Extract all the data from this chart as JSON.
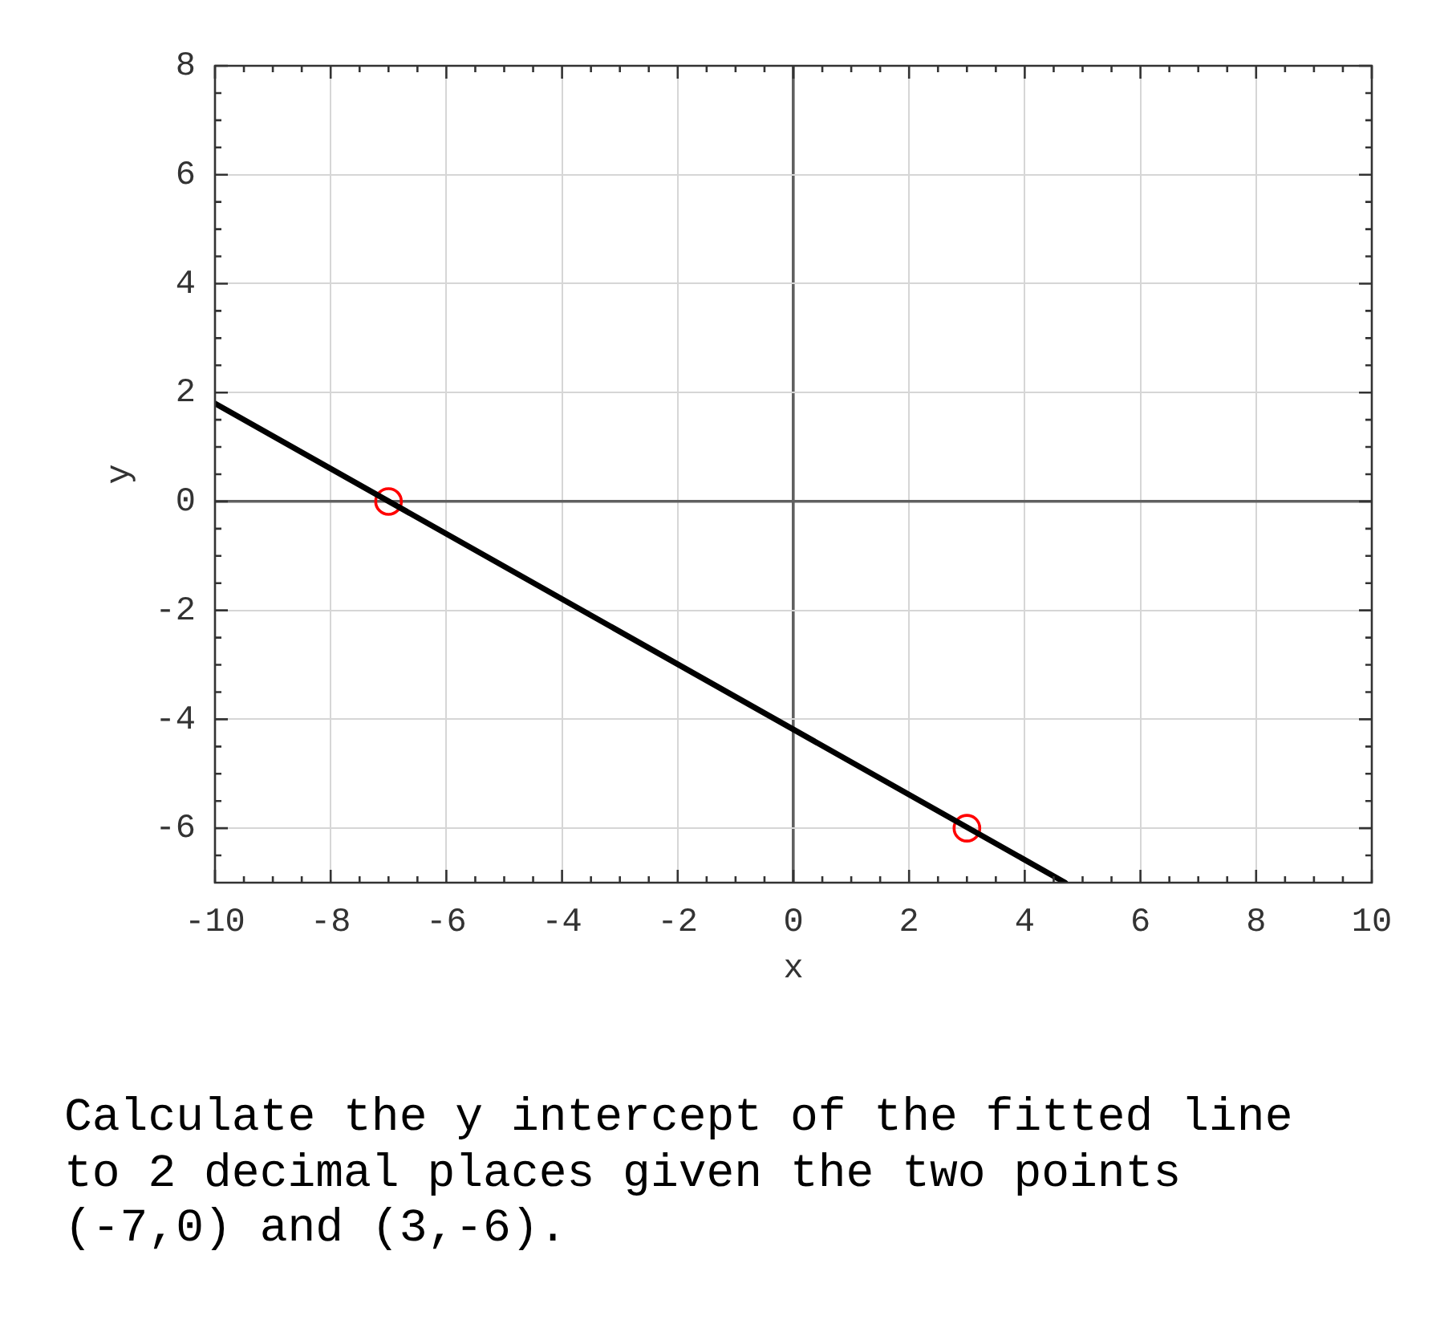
{
  "chart_data": {
    "type": "line",
    "xlabel": "x",
    "ylabel": "y",
    "series": [
      {
        "type": "line",
        "color": "#000000",
        "x": [
          -10,
          4.7
        ],
        "values": [
          1.8,
          -7
        ],
        "marker": "none"
      },
      {
        "type": "scatter",
        "color": "#ff0000",
        "x": [
          -7,
          3
        ],
        "values": [
          0,
          -6
        ],
        "marker": "circle"
      }
    ],
    "xlim": [
      -10,
      10
    ],
    "xticks": [
      -10,
      {
        "value": -9.5,
        "label": null
      },
      {
        "value": -9,
        "label": null
      },
      {
        "value": -8.5,
        "label": null
      },
      -8,
      {
        "value": -7.5,
        "label": null
      },
      {
        "value": -7,
        "label": null
      },
      {
        "value": -6.5,
        "label": null
      },
      -6,
      {
        "value": -5.5,
        "label": null
      },
      {
        "value": -5,
        "label": null
      },
      {
        "value": -4.5,
        "label": null
      },
      -4,
      {
        "value": -3.5,
        "label": null
      },
      {
        "value": -3,
        "label": null
      },
      {
        "value": -2.5,
        "label": null
      },
      -2,
      {
        "value": -1.5,
        "label": null
      },
      {
        "value": -1,
        "label": null
      },
      {
        "value": -0.5,
        "label": null
      },
      0,
      {
        "value": 0.5,
        "label": null
      },
      {
        "value": 1,
        "label": null
      },
      {
        "value": 1.5,
        "label": null
      },
      2,
      {
        "value": 2.5,
        "label": null
      },
      {
        "value": 3,
        "label": null
      },
      {
        "value": 3.5,
        "label": null
      },
      4,
      {
        "value": 4.5,
        "label": null
      },
      {
        "value": 5,
        "label": null
      },
      {
        "value": 5.5,
        "label": null
      },
      6,
      {
        "value": 6.5,
        "label": null
      },
      {
        "value": 7,
        "label": null
      },
      {
        "value": 7.5,
        "label": null
      },
      8,
      {
        "value": 8.5,
        "label": null
      },
      {
        "value": 9,
        "label": null
      },
      {
        "value": 9.5,
        "label": null
      },
      10
    ],
    "ylim": [
      -7,
      8
    ],
    "yticks": [
      {
        "value": -6.5,
        "label": null
      },
      -6,
      {
        "value": -5.5,
        "label": null
      },
      {
        "value": -5,
        "label": null
      },
      {
        "value": -4.5,
        "label": null
      },
      -4,
      {
        "value": -3.5,
        "label": null
      },
      {
        "value": -3,
        "label": null
      },
      {
        "value": -2.5,
        "label": null
      },
      -2,
      {
        "value": -1.5,
        "label": null
      },
      {
        "value": -1,
        "label": null
      },
      {
        "value": -0.5,
        "label": null
      },
      0,
      {
        "value": 0.5,
        "label": null
      },
      {
        "value": 1,
        "label": null
      },
      {
        "value": 1.5,
        "label": null
      },
      2,
      {
        "value": 2.5,
        "label": null
      },
      {
        "value": 3,
        "label": null
      },
      {
        "value": 3.5,
        "label": null
      },
      4,
      {
        "value": 4.5,
        "label": null
      },
      {
        "value": 5,
        "label": null
      },
      {
        "value": 5.5,
        "label": null
      },
      6,
      {
        "value": 6.5,
        "label": null
      },
      {
        "value": 7,
        "label": null
      },
      {
        "value": 7.5,
        "label": null
      },
      8
    ],
    "grid": true,
    "annotations": [
      "Calculate the y intercept of the fitted line to 2 decimal places given the two points (-7,0) and (3,-6)."
    ]
  }
}
